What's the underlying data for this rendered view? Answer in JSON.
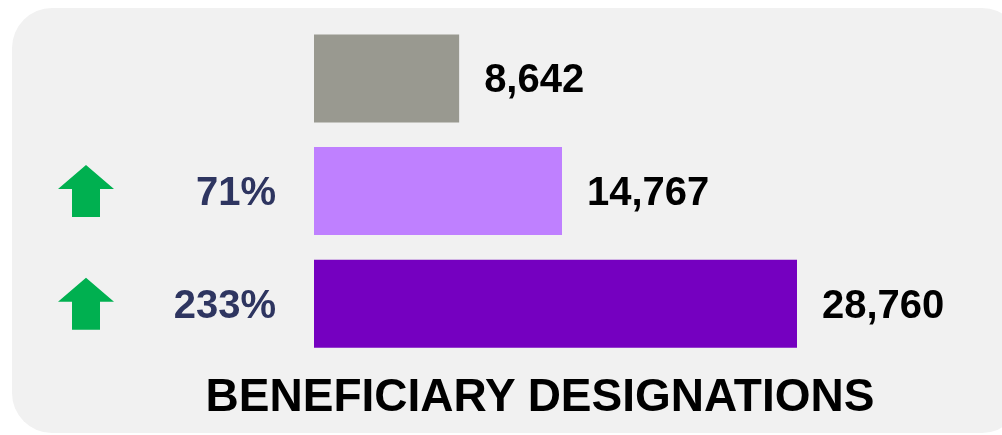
{
  "chart_data": {
    "type": "bar",
    "orientation": "horizontal",
    "title": "BENEFICIARY DESIGNATIONS",
    "categories": [
      null,
      "71%",
      "233%"
    ],
    "values": [
      8642,
      14767,
      28760
    ],
    "colors": [
      "#999990",
      "#bf80ff",
      "#7500c0"
    ],
    "value_labels": [
      "8,642",
      "14,767",
      "28,760"
    ],
    "tick_labels": "y"
  }
}
